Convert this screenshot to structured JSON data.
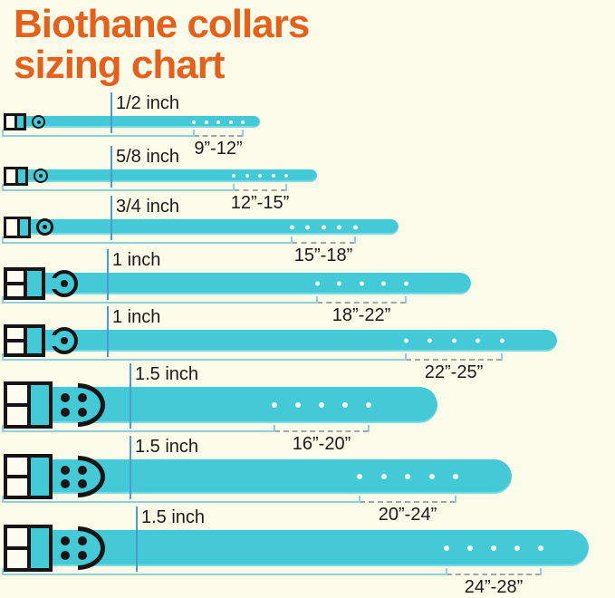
{
  "title": {
    "line1": "Biothane collars",
    "line2": "sizing chart"
  },
  "rows": [
    {
      "width_label": "1/2 inch",
      "size_range": "9”-12”",
      "holes": 5
    },
    {
      "width_label": "5/8 inch",
      "size_range": "12”-15”",
      "holes": 5
    },
    {
      "width_label": "3/4 inch",
      "size_range": "15”-18”",
      "holes": 5
    },
    {
      "width_label": "1 inch",
      "size_range": "18”-22”",
      "holes": 5
    },
    {
      "width_label": "1 inch",
      "size_range": "22”-25”",
      "holes": 5
    },
    {
      "width_label": "1.5 inch",
      "size_range": "16”-20”",
      "holes": 5
    },
    {
      "width_label": "1.5 inch",
      "size_range": "20”-24”",
      "holes": 5
    },
    {
      "width_label": "1.5 inch",
      "size_range": "24”-28”",
      "holes": 5
    }
  ],
  "colors": {
    "background": "#FAFBE8",
    "collar_teal": "#44C9D6",
    "title_orange": "#E5601B",
    "measure_blue": "#4A9CCB",
    "buckle_black": "#151515"
  }
}
